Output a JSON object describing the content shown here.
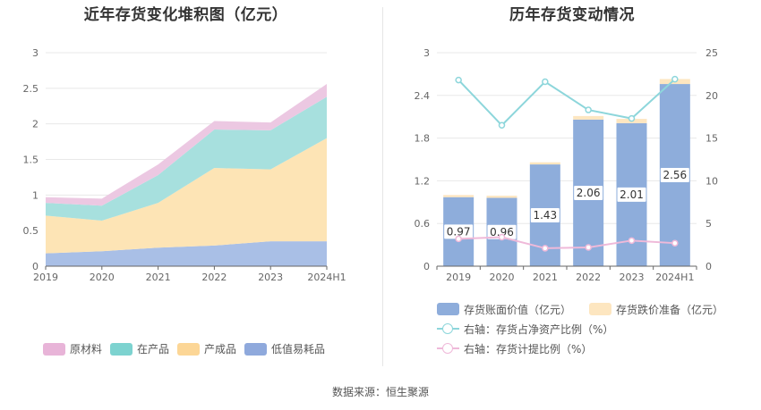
{
  "source": "数据来源：恒生聚源",
  "chart_data": [
    {
      "type": "area",
      "stacked": true,
      "title": "近年存货变化堆积图（亿元）",
      "categories": [
        "2019",
        "2020",
        "2021",
        "2022",
        "2023",
        "2024H1"
      ],
      "ylim": [
        0,
        3
      ],
      "yticks": [
        "0",
        "0.5",
        "1",
        "1.5",
        "2",
        "2.5",
        "3"
      ],
      "series": [
        {
          "name": "低值易耗品",
          "color": "#a9bfe6",
          "legend_color": "#8fa9dc",
          "values": [
            0.18,
            0.21,
            0.26,
            0.29,
            0.35,
            0.35
          ]
        },
        {
          "name": "产成品",
          "color": "#fde4b5",
          "legend_color": "#fcd696",
          "values": [
            0.53,
            0.43,
            0.63,
            1.09,
            1.01,
            1.45
          ]
        },
        {
          "name": "在产品",
          "color": "#a7e0de",
          "legend_color": "#7dd3d0",
          "values": [
            0.18,
            0.21,
            0.39,
            0.54,
            0.55,
            0.58
          ]
        },
        {
          "name": "原材料",
          "color": "#ecc8e2",
          "legend_color": "#e8b4d8",
          "values": [
            0.08,
            0.1,
            0.15,
            0.12,
            0.11,
            0.18
          ]
        }
      ],
      "legend_order": [
        "原材料",
        "在产品",
        "产成品",
        "低值易耗品"
      ]
    },
    {
      "type": "bar",
      "title": "历年存货变动情况",
      "categories": [
        "2019",
        "2020",
        "2021",
        "2022",
        "2023",
        "2024H1"
      ],
      "ylim_left": [
        0,
        3
      ],
      "yticks_left": [
        "0",
        "0.6",
        "1.2",
        "1.8",
        "2.4",
        "3"
      ],
      "ylim_right": [
        0,
        25
      ],
      "yticks_right": [
        "0",
        "5",
        "10",
        "15",
        "20",
        "25"
      ],
      "bars": [
        {
          "name": "存货账面价值（亿元）",
          "color": "#8eaddb",
          "values": [
            0.97,
            0.96,
            1.43,
            2.06,
            2.01,
            2.56
          ],
          "labels": [
            "0.97",
            "0.96",
            "1.43",
            "2.06",
            "2.01",
            "2.56"
          ]
        },
        {
          "name": "存货跌价准备（亿元）",
          "color": "#fde6c0",
          "values": [
            0.03,
            0.03,
            0.03,
            0.05,
            0.06,
            0.07
          ]
        }
      ],
      "lines": [
        {
          "name": "右轴：存货占净资产比例（%）",
          "color": "#8dd6db",
          "values": [
            21.8,
            16.5,
            21.6,
            18.3,
            17.3,
            21.9
          ]
        },
        {
          "name": "右轴：存货计提比例（%）",
          "color": "#efb9d9",
          "values": [
            3.2,
            3.4,
            2.1,
            2.2,
            3.0,
            2.7
          ]
        }
      ]
    }
  ]
}
